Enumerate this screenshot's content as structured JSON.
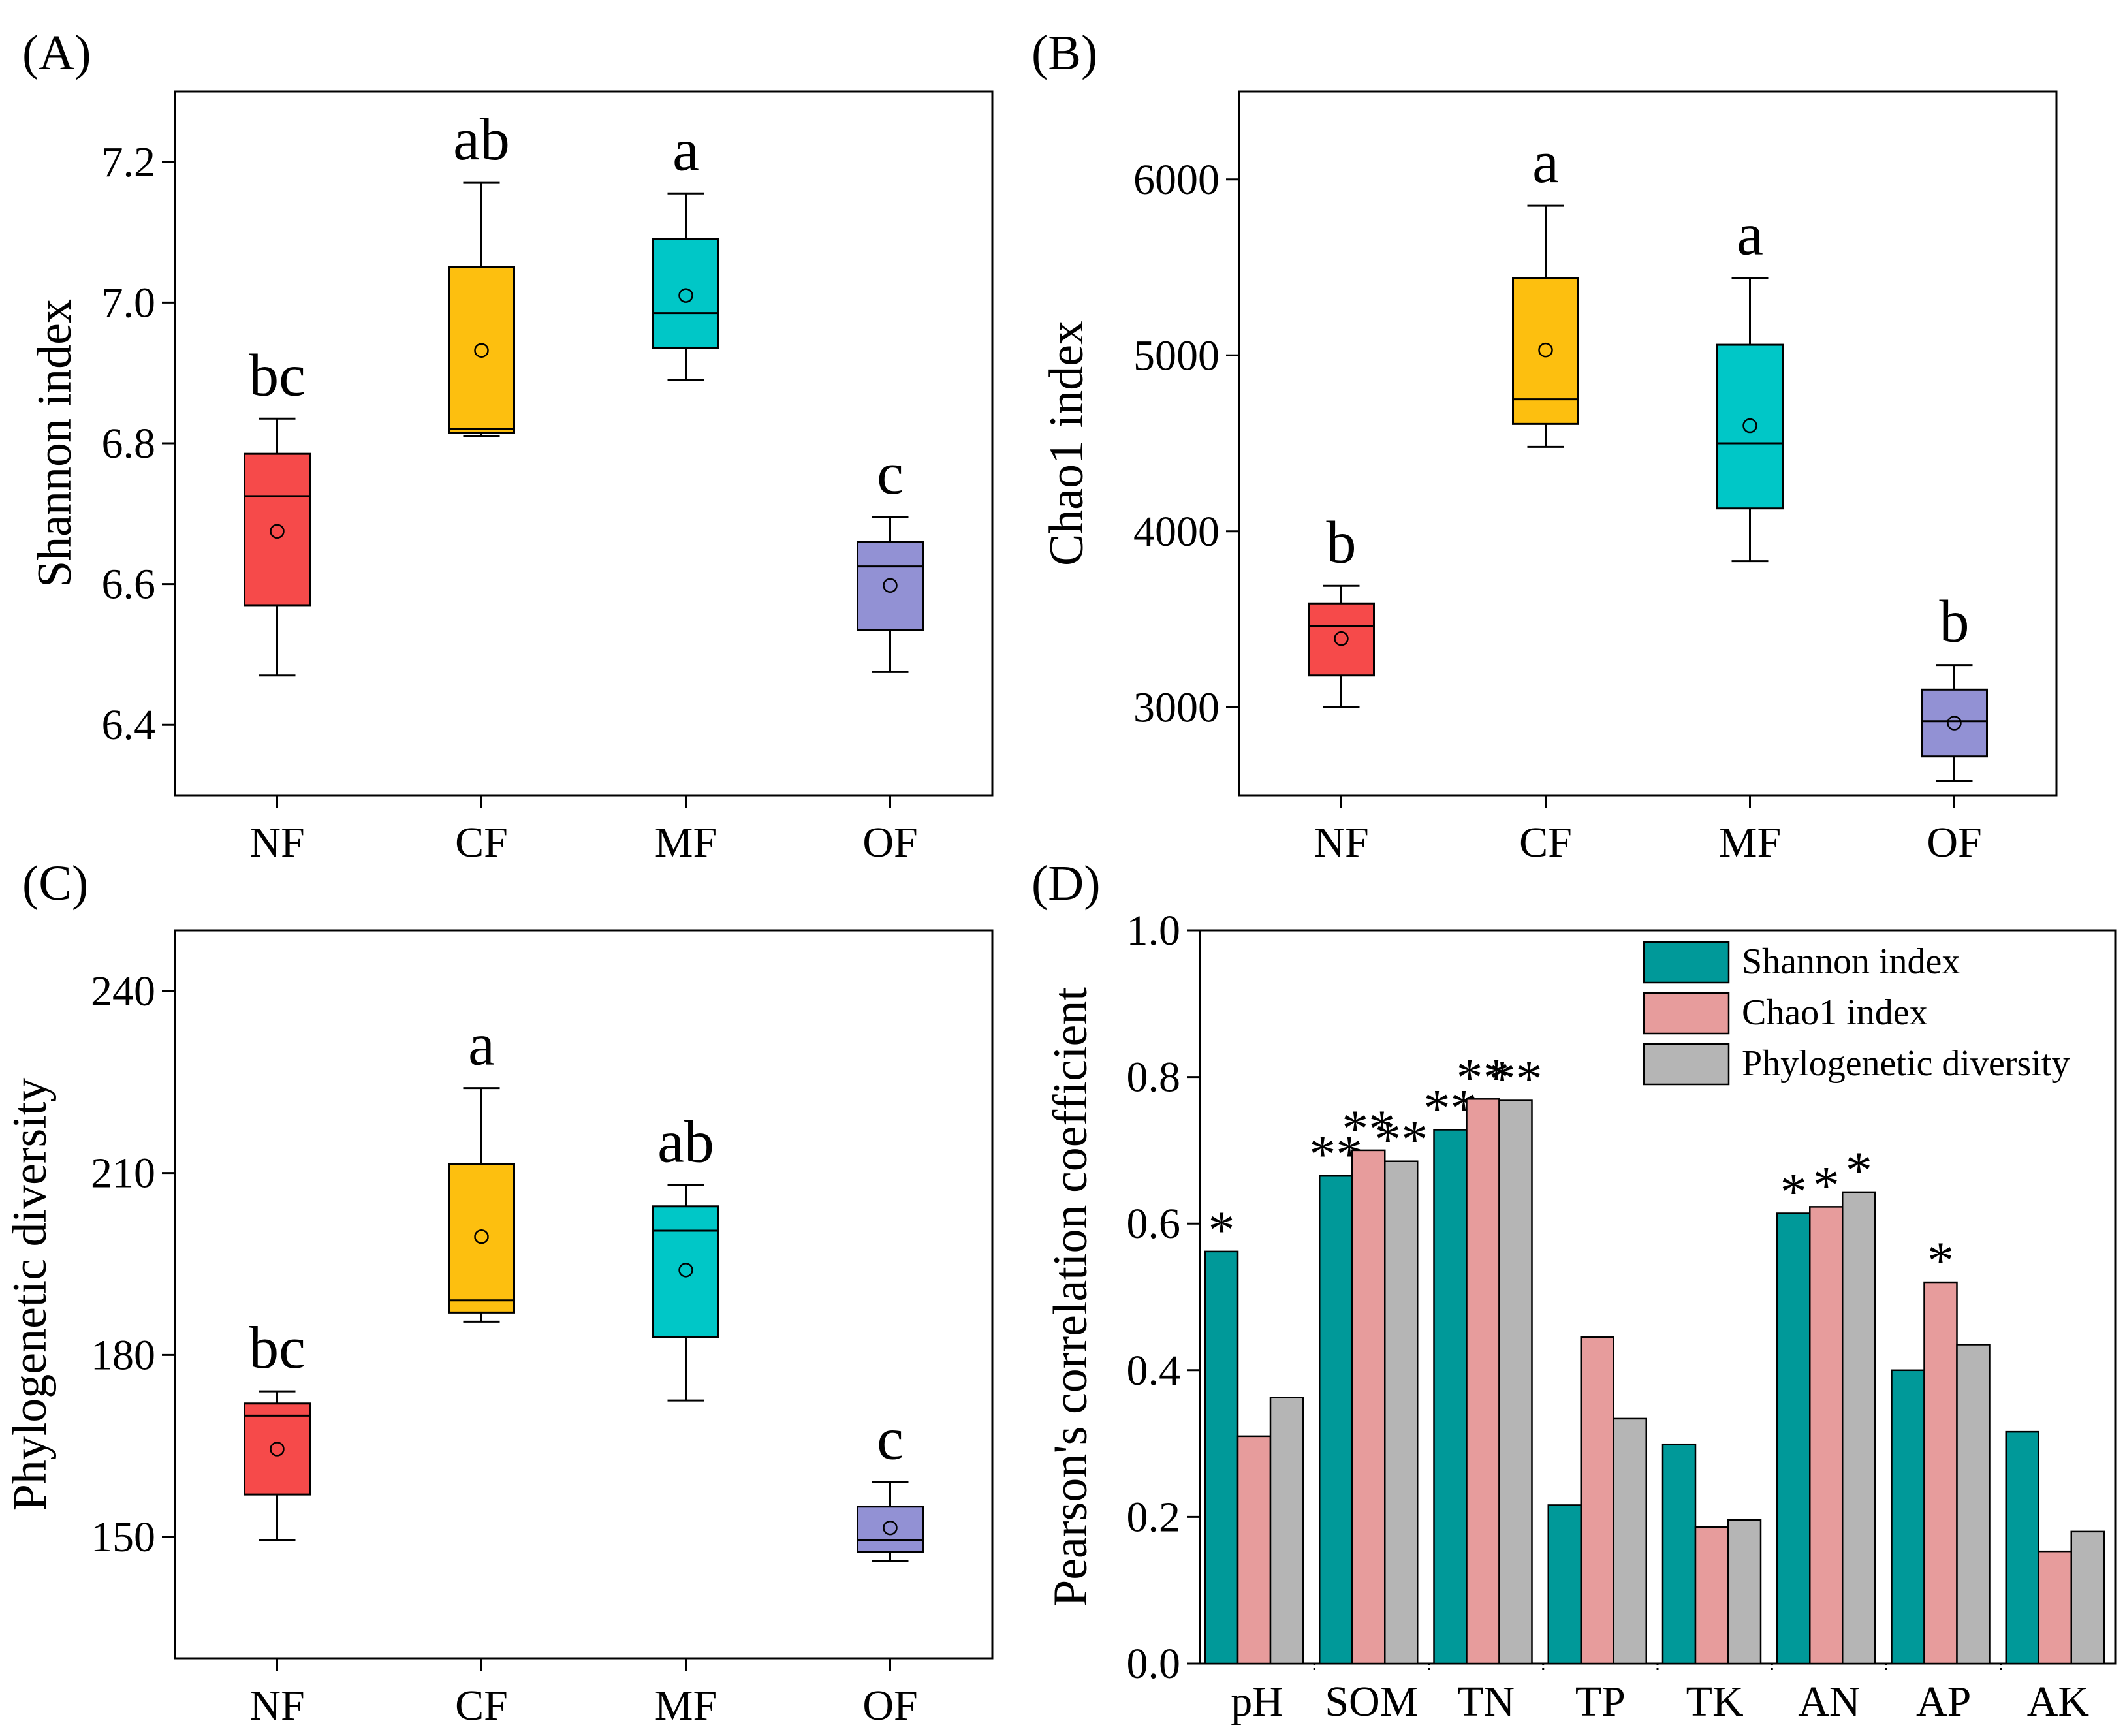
{
  "chart_data": [
    {
      "panel": "(A)",
      "type": "box",
      "ylabel": "Shannon index",
      "yticks": [
        "6.4",
        "6.6",
        "6.8",
        "7.0",
        "7.2"
      ],
      "ylim": [
        6.3,
        7.3
      ],
      "categories": [
        "NF",
        "CF",
        "MF",
        "OF"
      ],
      "colors": [
        "#f64a4a",
        "#fdbf0f",
        "#00c7c7",
        "#9291d4"
      ],
      "boxes": [
        {
          "min": 6.47,
          "q1": 6.57,
          "median": 6.725,
          "q3": 6.785,
          "max": 6.835,
          "mean": 6.675
        },
        {
          "min": 6.81,
          "q1": 6.815,
          "median": 6.82,
          "q3": 7.05,
          "max": 7.17,
          "mean": 6.932
        },
        {
          "min": 6.89,
          "q1": 6.935,
          "median": 6.985,
          "q3": 7.09,
          "max": 7.155,
          "mean": 7.01
        },
        {
          "min": 6.475,
          "q1": 6.535,
          "median": 6.625,
          "q3": 6.66,
          "max": 6.695,
          "mean": 6.598
        }
      ],
      "letters": [
        "bc",
        "ab",
        "a",
        "c"
      ]
    },
    {
      "panel": "(B)",
      "type": "box",
      "ylabel": "Chao1 index",
      "yticks": [
        "3000",
        "4000",
        "5000",
        "6000"
      ],
      "ylim": [
        2500,
        6500
      ],
      "categories": [
        "NF",
        "CF",
        "MF",
        "OF"
      ],
      "colors": [
        "#f64a4a",
        "#fdbf0f",
        "#00c7c7",
        "#9291d4"
      ],
      "boxes": [
        {
          "min": 3000,
          "q1": 3180,
          "median": 3460,
          "q3": 3590,
          "max": 3690,
          "mean": 3390
        },
        {
          "min": 4480,
          "q1": 4610,
          "median": 4750,
          "q3": 5440,
          "max": 5850,
          "mean": 5030
        },
        {
          "min": 3830,
          "q1": 4130,
          "median": 4500,
          "q3": 5060,
          "max": 5440,
          "mean": 4600
        },
        {
          "min": 2580,
          "q1": 2720,
          "median": 2920,
          "q3": 3100,
          "max": 3240,
          "mean": 2910
        }
      ],
      "letters": [
        "b",
        "a",
        "a",
        "b"
      ]
    },
    {
      "panel": "(C)",
      "type": "box",
      "ylabel": "Phylogenetic diversity",
      "yticks": [
        "150",
        "180",
        "210",
        "240"
      ],
      "ylim": [
        130,
        250
      ],
      "categories": [
        "NF",
        "CF",
        "MF",
        "OF"
      ],
      "colors": [
        "#f64a4a",
        "#fdbf0f",
        "#00c7c7",
        "#9291d4"
      ],
      "boxes": [
        {
          "min": 149.5,
          "q1": 157,
          "median": 170,
          "q3": 172,
          "max": 174,
          "mean": 164.5
        },
        {
          "min": 185.5,
          "q1": 187,
          "median": 189,
          "q3": 211.5,
          "max": 224,
          "mean": 199.5
        },
        {
          "min": 172.5,
          "q1": 183,
          "median": 200.5,
          "q3": 204.5,
          "max": 208,
          "mean": 194
        },
        {
          "min": 146,
          "q1": 147.5,
          "median": 149.5,
          "q3": 155,
          "max": 159,
          "mean": 151.5
        }
      ],
      "letters": [
        "bc",
        "a",
        "ab",
        "c"
      ]
    },
    {
      "panel": "(D)",
      "type": "bar",
      "ylabel": "Pearson's correlation coefficient",
      "yticks": [
        "0.0",
        "0.2",
        "0.4",
        "0.6",
        "0.8",
        "1.0"
      ],
      "ylim": [
        0,
        1.0
      ],
      "categories": [
        "pH",
        "SOM",
        "TN",
        "TP",
        "TK",
        "AN",
        "AP",
        "AK"
      ],
      "series": [
        {
          "name": "Shannon index",
          "color": "#009999",
          "values": [
            0.562,
            0.665,
            0.728,
            0.216,
            0.299,
            0.614,
            0.4,
            0.316
          ],
          "sig": [
            "*",
            "**",
            "**",
            "",
            "",
            "*",
            "",
            ""
          ]
        },
        {
          "name": "Chao1 index",
          "color": "#e79c9c",
          "values": [
            0.31,
            0.7,
            0.77,
            0.445,
            0.186,
            0.623,
            0.52,
            0.153
          ],
          "sig": [
            "",
            "**",
            "**",
            "",
            "",
            "*",
            "*",
            ""
          ]
        },
        {
          "name": "Phylogenetic diversity",
          "color": "#b5b5b5",
          "values": [
            0.363,
            0.685,
            0.768,
            0.334,
            0.196,
            0.643,
            0.435,
            0.18
          ],
          "sig": [
            "",
            "**",
            "**",
            "",
            "",
            "*",
            "",
            ""
          ]
        }
      ]
    }
  ]
}
